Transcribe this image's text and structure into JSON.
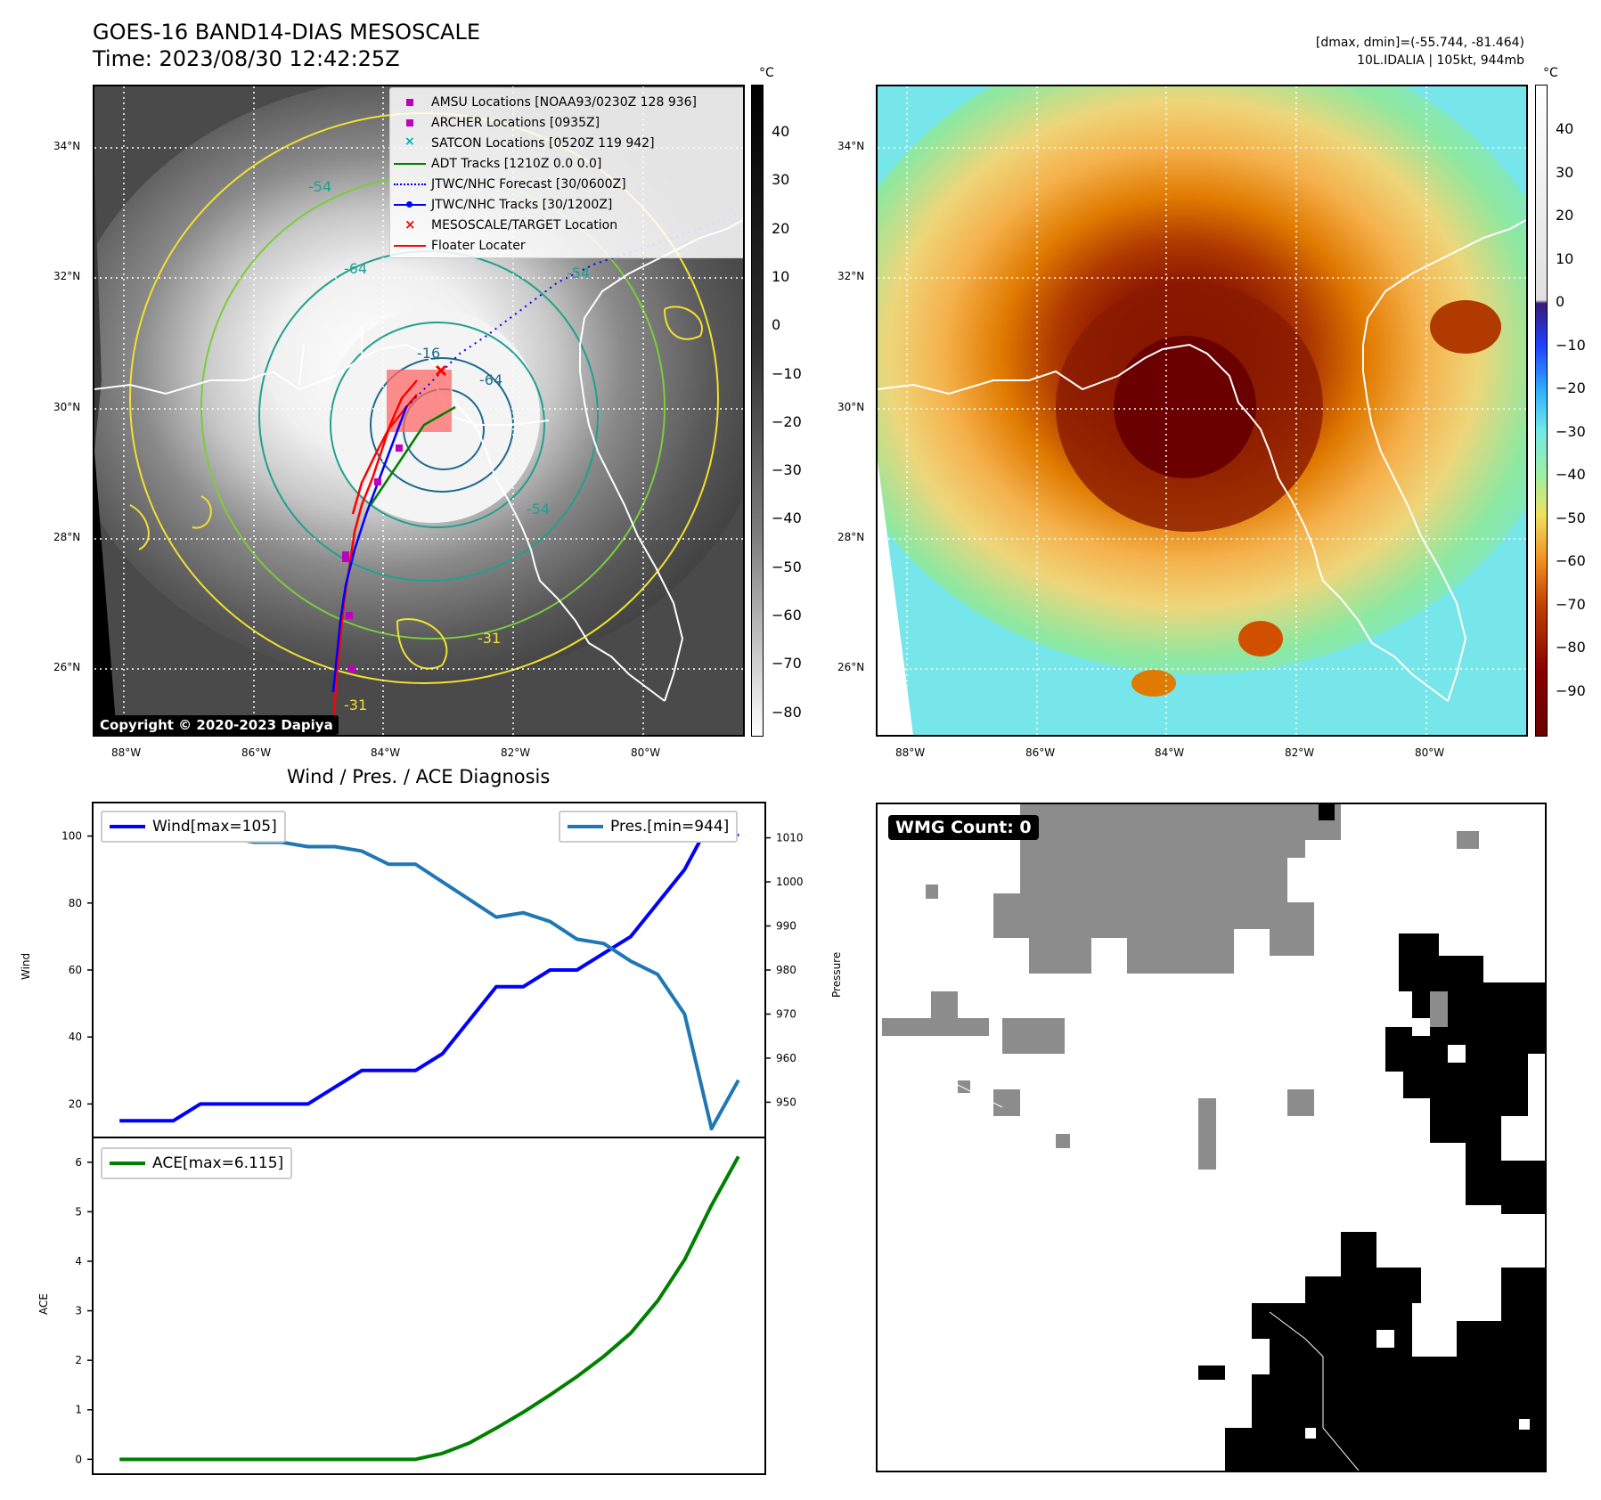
{
  "header": {
    "title": "GOES-16 BAND14-DIAS MESOSCALE",
    "time": "Time: 2023/08/30 12:42:25Z",
    "dmax_dmin": "[dmax, dmin]=(-55.744, -81.464)",
    "storm_info": "10L.IDALIA | 105kt, 944mb"
  },
  "map": {
    "lat_labels": [
      "34°N",
      "32°N",
      "30°N",
      "28°N",
      "26°N"
    ],
    "lon_labels": [
      "88°W",
      "86°W",
      "84°W",
      "82°W",
      "80°W"
    ],
    "copyright": "Copyright © 2020-2023 Dapiya",
    "colorbar_unit": "°C",
    "gray_colorbar_ticks": [
      "40",
      "30",
      "20",
      "10",
      "0",
      "−10",
      "−20",
      "−30",
      "−40",
      "−50",
      "−60",
      "−70",
      "−80"
    ],
    "color_colorbar_ticks": [
      "40",
      "30",
      "20",
      "10",
      "0",
      "−10",
      "−20",
      "−30",
      "−40",
      "−50",
      "−60",
      "−70",
      "−80",
      "−90"
    ],
    "contour_labels": [
      "-64",
      "-54",
      "-16",
      "-64",
      "-54",
      "-54",
      "-31",
      "-31"
    ],
    "legend": [
      {
        "label": "AMSU Locations [NOAA93/0230Z 128 936]",
        "color": "#c000c0",
        "symbol": "square"
      },
      {
        "label": "ARCHER Locations [0935Z]",
        "color": "#c000c0",
        "symbol": "square"
      },
      {
        "label": "SATCON Locations [0520Z 119 942]",
        "color": "#00b0b0",
        "symbol": "x"
      },
      {
        "label": "ADT Tracks [1210Z 0.0 0.0]",
        "color": "#008000",
        "symbol": "line"
      },
      {
        "label": "JTWC/NHC Forecast [30/0600Z]",
        "color": "#0000ff",
        "symbol": "dotted"
      },
      {
        "label": "JTWC/NHC Tracks [30/1200Z]",
        "color": "#0000ff",
        "symbol": "line-dot"
      },
      {
        "label": "MESOSCALE/TARGET Location",
        "color": "#ff0000",
        "symbol": "x"
      },
      {
        "label": "Floater Locater",
        "color": "#ff0000",
        "symbol": "line"
      }
    ]
  },
  "diagnosis": {
    "title": "Wind / Pres. / ACE Diagnosis",
    "wind_legend": "Wind[max=105]",
    "pres_legend": "Pres.[min=944]",
    "ace_legend": "ACE[max=6.115]",
    "wind_axis_label": "Wind",
    "pres_axis_label": "Pressure",
    "ace_axis_label": "ACE"
  },
  "wmg": {
    "label": "WMG Count: 0"
  },
  "chart_data": [
    {
      "type": "line",
      "title": "Wind / Pres. / ACE Diagnosis",
      "x": [
        0,
        1,
        2,
        3,
        4,
        5,
        6,
        7,
        8,
        9,
        10,
        11,
        12,
        13,
        14,
        15,
        16,
        17,
        18,
        19,
        20,
        21,
        22,
        23
      ],
      "series": [
        {
          "name": "Wind[max=105]",
          "axis": "left",
          "color": "#0000ff",
          "values": [
            15,
            15,
            15,
            20,
            20,
            20,
            20,
            20,
            25,
            30,
            30,
            30,
            35,
            45,
            55,
            55,
            60,
            60,
            65,
            70,
            80,
            90,
            105,
            100
          ]
        },
        {
          "name": "Pres.[min=944]",
          "axis": "right",
          "color": "#1f77b4",
          "values": [
            1015,
            1015,
            1015,
            1011,
            1010,
            1009,
            1009,
            1008,
            1008,
            1007,
            1004,
            1004,
            1000,
            996,
            992,
            993,
            991,
            987,
            986,
            982,
            979,
            970,
            944,
            955
          ]
        }
      ],
      "ylabel": "Wind",
      "y2label": "Pressure",
      "ylim": [
        10,
        110
      ],
      "y2lim": [
        942,
        1018
      ],
      "yticks": [
        20,
        40,
        60,
        80,
        100
      ],
      "y2ticks": [
        950,
        960,
        970,
        980,
        990,
        1000,
        1010
      ]
    },
    {
      "type": "line",
      "x": [
        0,
        1,
        2,
        3,
        4,
        5,
        6,
        7,
        8,
        9,
        10,
        11,
        12,
        13,
        14,
        15,
        16,
        17,
        18,
        19,
        20,
        21,
        22,
        23
      ],
      "series": [
        {
          "name": "ACE[max=6.115]",
          "color": "#008000",
          "values": [
            0,
            0,
            0,
            0,
            0,
            0,
            0,
            0,
            0,
            0,
            0,
            0,
            0.12,
            0.33,
            0.63,
            0.95,
            1.3,
            1.67,
            2.08,
            2.55,
            3.2,
            4.03,
            5.13,
            6.115
          ]
        }
      ],
      "ylabel": "ACE",
      "ylim": [
        -0.3,
        6.5
      ],
      "yticks": [
        0,
        1,
        2,
        3,
        4,
        5,
        6
      ]
    }
  ]
}
